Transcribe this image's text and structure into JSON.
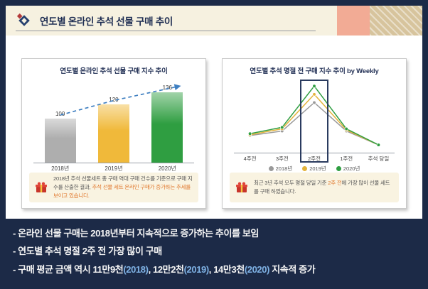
{
  "header": {
    "title": "연도별 온라인 추석 선물 구매 추이"
  },
  "colors": {
    "background_navy": "#1c2a47",
    "header_cream": "#f6f1e0",
    "deco_pink": "#f2ab95",
    "deco_tan": "#d7c49d",
    "trend_blue": "#3f7fc1",
    "note_emphasis": "#e0762a",
    "footer_emphasis": "#7fb2e5",
    "note_bg": "#f9f3e1"
  },
  "panels": {
    "left": {
      "note_segments": [
        {
          "t": "2018년 추석 선물세트 총 구매 역대 구매 건수를 기준으로 구매 지수를 산출한 결과, "
        },
        {
          "t": "추석 선물 세트 온라인 구매가 증가하는 추세를 보이고 있습니다.",
          "color": "#e0762a"
        }
      ]
    },
    "right": {
      "note_segments": [
        {
          "t": "최근 3년 추석 모두 명절 당일 기준 "
        },
        {
          "t": "2주 전",
          "color": "#e0762a"
        },
        {
          "t": "에 가장 많이 선물 세트를 구매 하였습니다."
        }
      ]
    }
  },
  "footer": {
    "bullets": [
      {
        "segments": [
          {
            "t": "- 온라인 선물 구매는 2018년부터 지속적으로 증가하는 추이를 보임"
          }
        ]
      },
      {
        "segments": [
          {
            "t": "- 연도별 추석 명절 2주 전 가장 많이 구매"
          }
        ]
      },
      {
        "segments": [
          {
            "t": "- 구매 평균 금액 역시 11만9천"
          },
          {
            "t": "(2018)",
            "color": "#7fb2e5"
          },
          {
            "t": ", 12만2천"
          },
          {
            "t": "(2019)",
            "color": "#7fb2e5"
          },
          {
            "t": ", 14만3천"
          },
          {
            "t": "(2020)",
            "color": "#7fb2e5"
          },
          {
            "t": " 지속적 증가"
          }
        ]
      }
    ]
  },
  "chart_data": [
    {
      "type": "bar",
      "title": "연도별 온라인 추석 선물 구매 지수 추이",
      "categories": [
        "2018년",
        "2019년",
        "2020년"
      ],
      "values": [
        100,
        120,
        136
      ],
      "bar_colors": [
        "#aeaeae",
        "#f0b93a",
        "#2f9e41"
      ],
      "ylim": [
        0,
        140
      ],
      "annotations": [
        "dashed blue trend arrow rising across bar tops"
      ]
    },
    {
      "type": "line",
      "title": "연도별 추석 명절 전 구매 지수 추이 by Weekly",
      "x": [
        "4주전",
        "3주전",
        "2주전",
        "1주전",
        "추석 당일"
      ],
      "series": [
        {
          "name": "2018년",
          "color": "#9a9a9a",
          "values": [
            40,
            52,
            128,
            52,
            15
          ]
        },
        {
          "name": "2019년",
          "color": "#e3b33c",
          "values": [
            42,
            58,
            150,
            55,
            15
          ]
        },
        {
          "name": "2020년",
          "color": "#2f9e41",
          "values": [
            45,
            62,
            172,
            58,
            15
          ]
        }
      ],
      "ylim": [
        0,
        180
      ],
      "highlight_x": "2주전",
      "legend_position": "bottom"
    }
  ]
}
